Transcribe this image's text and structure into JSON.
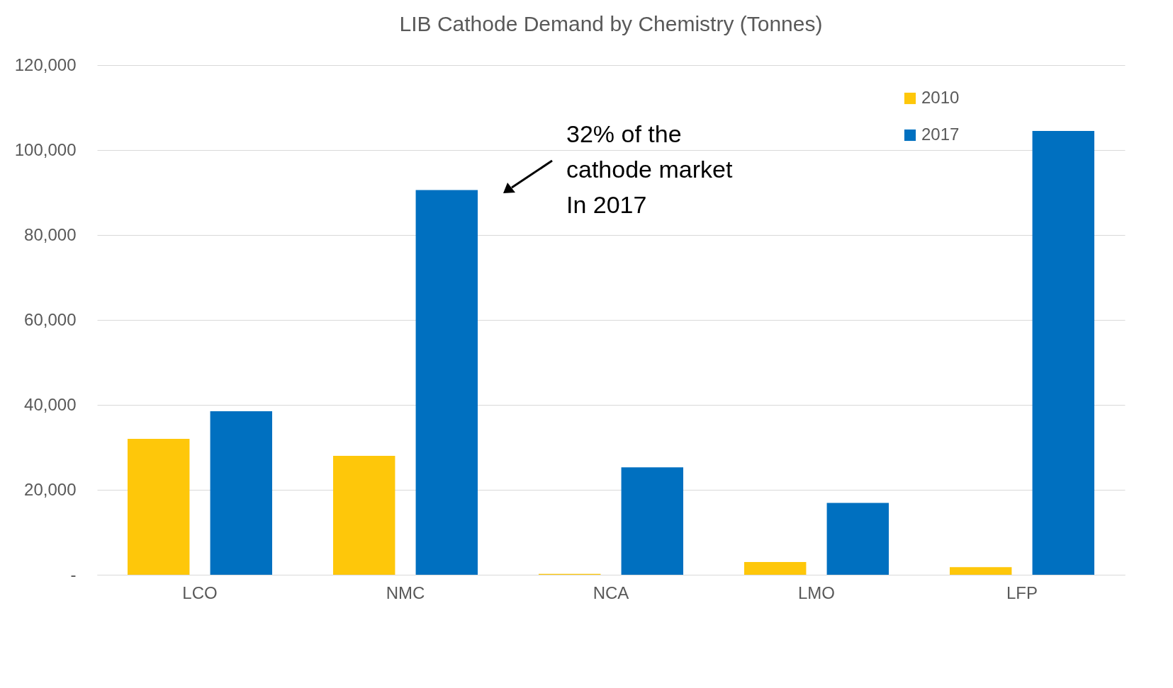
{
  "chart_data": {
    "type": "bar",
    "title": "LIB Cathode Demand by Chemistry (Tonnes)",
    "categories": [
      "LCO",
      "NMC",
      "NCA",
      "LMO",
      "LFP"
    ],
    "series": [
      {
        "name": "2010",
        "color": "#fec70a",
        "values": [
          32000,
          28000,
          200,
          3000,
          1800
        ]
      },
      {
        "name": "2017",
        "color": "#0070c0",
        "values": [
          38500,
          90600,
          25300,
          16900,
          104500
        ]
      }
    ],
    "ylim": [
      0,
      120000
    ],
    "yticks": [
      {
        "value": 0,
        "label": "-"
      },
      {
        "value": 20000,
        "label": "20,000"
      },
      {
        "value": 40000,
        "label": "40,000"
      },
      {
        "value": 60000,
        "label": "60,000"
      },
      {
        "value": 80000,
        "label": "80,000"
      },
      {
        "value": 100000,
        "label": "100,000"
      },
      {
        "value": 120000,
        "label": "120,000"
      }
    ],
    "grid": "y",
    "legend": "top right",
    "annotations": [
      "32% of the\ncathode market\nIn 2017"
    ]
  }
}
